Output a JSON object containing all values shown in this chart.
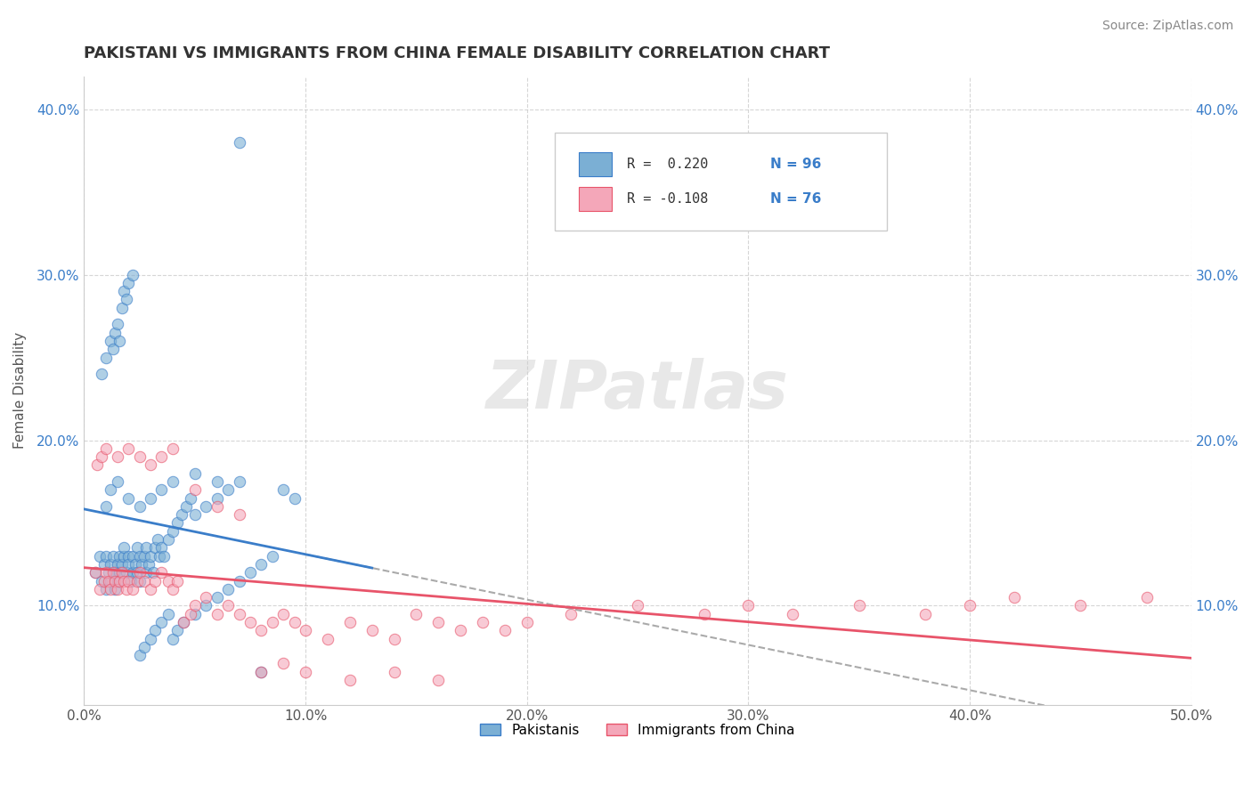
{
  "title": "PAKISTANI VS IMMIGRANTS FROM CHINA FEMALE DISABILITY CORRELATION CHART",
  "source": "Source: ZipAtlas.com",
  "ylabel": "Female Disability",
  "xlim": [
    0.0,
    0.5
  ],
  "ylim": [
    0.04,
    0.42
  ],
  "xticks": [
    0.0,
    0.1,
    0.2,
    0.3,
    0.4,
    0.5
  ],
  "xticklabels": [
    "0.0%",
    "10.0%",
    "20.0%",
    "30.0%",
    "40.0%",
    "50.0%"
  ],
  "yticks": [
    0.1,
    0.2,
    0.3,
    0.4
  ],
  "yticklabels": [
    "10.0%",
    "20.0%",
    "30.0%",
    "40.0%"
  ],
  "background_color": "#ffffff",
  "grid_color": "#cccccc",
  "legend_r1": "R =  0.220",
  "legend_n1": "N = 96",
  "legend_r2": "R = -0.108",
  "legend_n2": "N = 76",
  "series1_color": "#7bafd4",
  "series2_color": "#f4a7b9",
  "series1_line_color": "#3a7dc9",
  "series2_line_color": "#e8546a",
  "dash_color": "#aaaaaa",
  "watermark": "ZIPatlas",
  "series1_label": "Pakistanis",
  "series2_label": "Immigrants from China",
  "pakistani_x": [
    0.005,
    0.007,
    0.008,
    0.009,
    0.01,
    0.01,
    0.011,
    0.012,
    0.012,
    0.013,
    0.014,
    0.014,
    0.015,
    0.015,
    0.016,
    0.016,
    0.017,
    0.018,
    0.018,
    0.019,
    0.02,
    0.02,
    0.021,
    0.022,
    0.022,
    0.023,
    0.024,
    0.024,
    0.025,
    0.025,
    0.026,
    0.027,
    0.028,
    0.028,
    0.029,
    0.03,
    0.031,
    0.032,
    0.033,
    0.034,
    0.035,
    0.036,
    0.038,
    0.04,
    0.042,
    0.044,
    0.046,
    0.048,
    0.05,
    0.055,
    0.06,
    0.065,
    0.07,
    0.008,
    0.01,
    0.012,
    0.013,
    0.014,
    0.015,
    0.016,
    0.017,
    0.018,
    0.019,
    0.02,
    0.022,
    0.025,
    0.027,
    0.03,
    0.032,
    0.035,
    0.038,
    0.04,
    0.042,
    0.045,
    0.05,
    0.055,
    0.06,
    0.065,
    0.07,
    0.075,
    0.08,
    0.085,
    0.09,
    0.095,
    0.01,
    0.012,
    0.015,
    0.02,
    0.025,
    0.03,
    0.035,
    0.04,
    0.05,
    0.06,
    0.07,
    0.08
  ],
  "pakistani_y": [
    0.12,
    0.13,
    0.115,
    0.125,
    0.11,
    0.13,
    0.12,
    0.115,
    0.125,
    0.13,
    0.11,
    0.12,
    0.115,
    0.125,
    0.13,
    0.12,
    0.125,
    0.13,
    0.135,
    0.12,
    0.13,
    0.125,
    0.115,
    0.12,
    0.13,
    0.125,
    0.135,
    0.12,
    0.13,
    0.115,
    0.125,
    0.13,
    0.12,
    0.135,
    0.125,
    0.13,
    0.12,
    0.135,
    0.14,
    0.13,
    0.135,
    0.13,
    0.14,
    0.145,
    0.15,
    0.155,
    0.16,
    0.165,
    0.155,
    0.16,
    0.165,
    0.17,
    0.175,
    0.24,
    0.25,
    0.26,
    0.255,
    0.265,
    0.27,
    0.26,
    0.28,
    0.29,
    0.285,
    0.295,
    0.3,
    0.07,
    0.075,
    0.08,
    0.085,
    0.09,
    0.095,
    0.08,
    0.085,
    0.09,
    0.095,
    0.1,
    0.105,
    0.11,
    0.115,
    0.12,
    0.125,
    0.13,
    0.17,
    0.165,
    0.16,
    0.17,
    0.175,
    0.165,
    0.16,
    0.165,
    0.17,
    0.175,
    0.18,
    0.175,
    0.38,
    0.06
  ],
  "china_x": [
    0.005,
    0.007,
    0.009,
    0.01,
    0.011,
    0.012,
    0.013,
    0.014,
    0.015,
    0.016,
    0.017,
    0.018,
    0.019,
    0.02,
    0.022,
    0.024,
    0.025,
    0.027,
    0.03,
    0.032,
    0.035,
    0.038,
    0.04,
    0.042,
    0.045,
    0.048,
    0.05,
    0.055,
    0.06,
    0.065,
    0.07,
    0.075,
    0.08,
    0.085,
    0.09,
    0.095,
    0.1,
    0.11,
    0.12,
    0.13,
    0.14,
    0.15,
    0.16,
    0.17,
    0.18,
    0.19,
    0.2,
    0.22,
    0.25,
    0.28,
    0.3,
    0.32,
    0.35,
    0.38,
    0.4,
    0.42,
    0.45,
    0.48,
    0.006,
    0.008,
    0.01,
    0.015,
    0.02,
    0.025,
    0.03,
    0.035,
    0.04,
    0.05,
    0.06,
    0.07,
    0.08,
    0.09,
    0.1,
    0.12,
    0.14,
    0.16
  ],
  "china_y": [
    0.12,
    0.11,
    0.115,
    0.12,
    0.115,
    0.11,
    0.12,
    0.115,
    0.11,
    0.115,
    0.12,
    0.115,
    0.11,
    0.115,
    0.11,
    0.115,
    0.12,
    0.115,
    0.11,
    0.115,
    0.12,
    0.115,
    0.11,
    0.115,
    0.09,
    0.095,
    0.1,
    0.105,
    0.095,
    0.1,
    0.095,
    0.09,
    0.085,
    0.09,
    0.095,
    0.09,
    0.085,
    0.08,
    0.09,
    0.085,
    0.08,
    0.095,
    0.09,
    0.085,
    0.09,
    0.085,
    0.09,
    0.095,
    0.1,
    0.095,
    0.1,
    0.095,
    0.1,
    0.095,
    0.1,
    0.105,
    0.1,
    0.105,
    0.185,
    0.19,
    0.195,
    0.19,
    0.195,
    0.19,
    0.185,
    0.19,
    0.195,
    0.17,
    0.16,
    0.155,
    0.06,
    0.065,
    0.06,
    0.055,
    0.06,
    0.055
  ]
}
